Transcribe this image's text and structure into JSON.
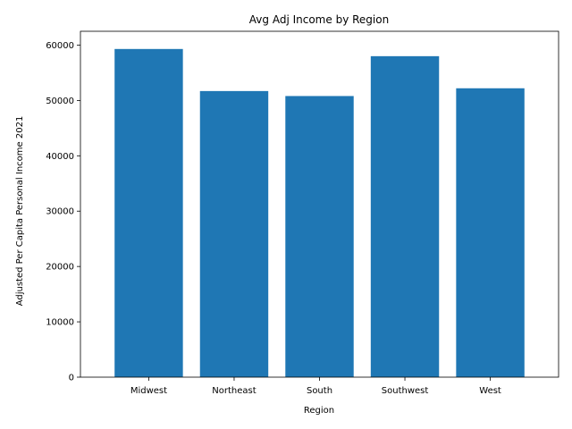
{
  "chart_data": {
    "type": "bar",
    "title": "Avg Adj Income by Region",
    "xlabel": "Region",
    "ylabel": "Adjusted Per Capita Personal Income 2021",
    "categories": [
      "Midwest",
      "Northeast",
      "South",
      "Southwest",
      "West"
    ],
    "values": [
      59300,
      51700,
      50800,
      58000,
      52200
    ],
    "ylim": [
      0,
      62500
    ],
    "yticks": [
      0,
      10000,
      20000,
      30000,
      40000,
      50000,
      60000
    ],
    "ytick_labels": [
      "0",
      "10000",
      "20000",
      "30000",
      "40000",
      "50000",
      "60000"
    ],
    "grid": false,
    "legend": "none",
    "bar_color": "#1f77b4"
  }
}
